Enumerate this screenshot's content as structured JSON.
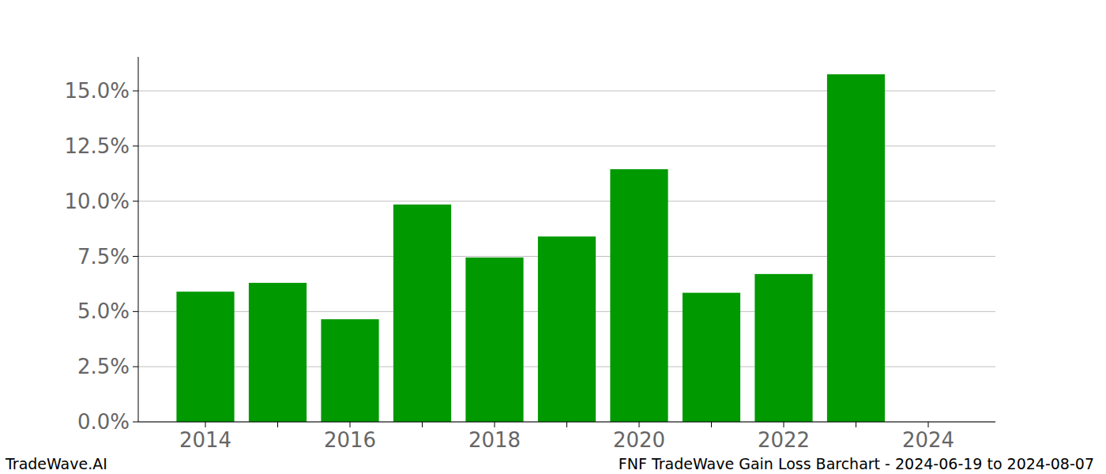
{
  "chart_data": {
    "type": "bar",
    "title": "FNF TradeWave Gain Loss Barchart - 2024-06-19 to 2024-08-07",
    "annotations": [
      "TradeWave.AI"
    ],
    "categories": [
      "2014",
      null,
      "2016",
      null,
      "2018",
      null,
      "2020",
      null,
      "2022",
      null,
      "2024"
    ],
    "values": [
      5.9,
      6.3,
      4.65,
      9.85,
      7.45,
      8.4,
      11.45,
      5.85,
      6.7,
      15.75,
      0
    ],
    "color": "#009900",
    "ylim": [
      0,
      16.54
    ],
    "yticks": [
      {
        "value": 0,
        "label": "0.0%"
      },
      {
        "value": 2.5,
        "label": "2.5%"
      },
      {
        "value": 5,
        "label": "5.0%"
      },
      {
        "value": 7.5,
        "label": "7.5%"
      },
      {
        "value": 10,
        "label": "10.0%"
      },
      {
        "value": 12.5,
        "label": "12.5%"
      },
      {
        "value": 15,
        "label": "15.0%"
      }
    ],
    "grid": true
  }
}
